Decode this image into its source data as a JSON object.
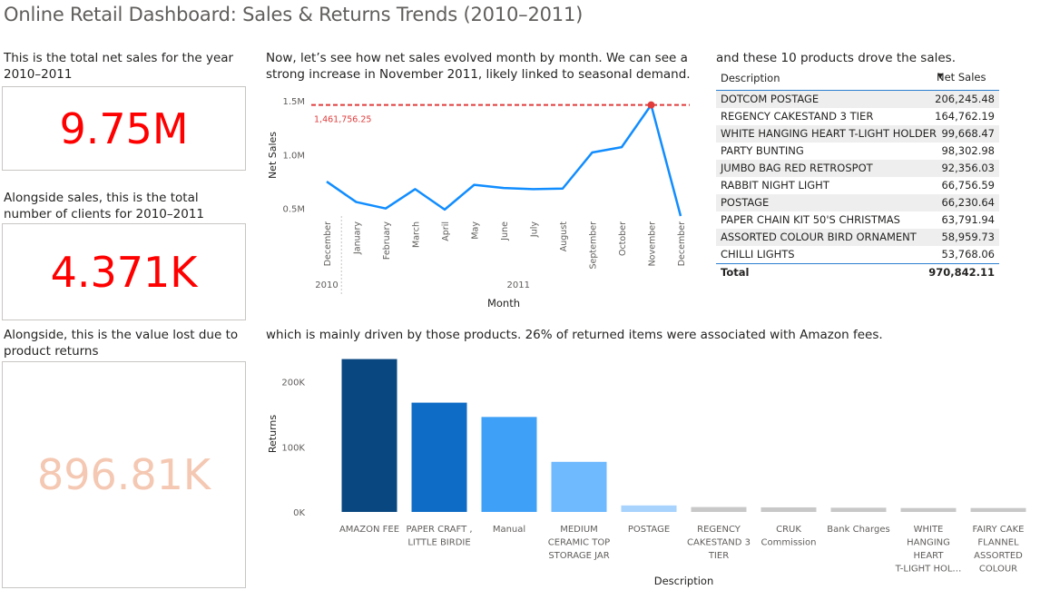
{
  "title": "Online Retail Dashboard: Sales & Returns Trends (2010–2011)",
  "kpis": {
    "sales": {
      "caption": "This is the total net sales for the year 2010–2011",
      "value": "9.75M",
      "color": "#ff0000"
    },
    "clients": {
      "caption": "Alongside sales, this is the total number of clients for 2010–2011",
      "value": "4.371K",
      "color": "#ff0000"
    },
    "returns": {
      "caption": "Alongside, this is the value lost due to product returns",
      "value": "896.81K",
      "color": "#f4c8b2"
    }
  },
  "line_caption": "Now, let’s see how net sales evolved month by month. We can see a strong increase in November 2011, likely linked to seasonal demand.",
  "table_caption": "and these 10 products drove the sales.",
  "bar_caption": "which is mainly driven by those products. 26% of returned items were associated with Amazon fees.",
  "table": {
    "headers": [
      "Description",
      "Net Sales"
    ],
    "sort_icon": "sort-descending-icon",
    "rows": [
      [
        "DOTCOM POSTAGE",
        "206,245.48"
      ],
      [
        "REGENCY CAKESTAND 3 TIER",
        "164,762.19"
      ],
      [
        "WHITE HANGING HEART T-LIGHT HOLDER",
        "99,668.47"
      ],
      [
        "PARTY BUNTING",
        "98,302.98"
      ],
      [
        "JUMBO BAG RED RETROSPOT",
        "92,356.03"
      ],
      [
        "RABBIT NIGHT LIGHT",
        "66,756.59"
      ],
      [
        "POSTAGE",
        "66,230.64"
      ],
      [
        "PAPER CHAIN KIT 50'S CHRISTMAS",
        "63,791.94"
      ],
      [
        "ASSORTED COLOUR BIRD ORNAMENT",
        "58,959.73"
      ],
      [
        "CHILLI LIGHTS",
        "53,768.06"
      ]
    ],
    "total_label": "Total",
    "total_value": "970,842.11"
  },
  "chart_data": [
    {
      "type": "line",
      "title": "",
      "xlabel": "Month",
      "ylabel": "Net Sales",
      "categories": [
        "December",
        "January",
        "February",
        "March",
        "April",
        "May",
        "June",
        "July",
        "August",
        "September",
        "October",
        "November",
        "December"
      ],
      "year_groups": [
        {
          "label": "2010",
          "count": 1
        },
        {
          "label": "2011",
          "count": 12
        }
      ],
      "values": [
        750000,
        560000,
        500000,
        680000,
        490000,
        720000,
        690000,
        680000,
        685000,
        1020000,
        1070000,
        1461756.25,
        430000
      ],
      "yticks": [
        500000,
        1000000,
        1500000
      ],
      "ytick_labels": [
        "0.5M",
        "1.0M",
        "1.5M"
      ],
      "ylim": [
        430000,
        1560000
      ],
      "max_line": {
        "value": 1461756.25,
        "label": "1,461,756.25",
        "color": "#e03c3c"
      },
      "line_color": "#118dff"
    },
    {
      "type": "bar",
      "title": "",
      "xlabel": "Description",
      "ylabel": "Returns",
      "categories": [
        "AMAZON FEE",
        "PAPER CRAFT , LITTLE BIRDIE",
        "Manual",
        "MEDIUM CERAMIC TOP STORAGE JAR",
        "POSTAGE",
        "REGENCY CAKESTAND 3 TIER",
        "CRUK Commission",
        "Bank Charges",
        "WHITE HANGING HEART T-LIGHT HOL…",
        "FAIRY CAKE FLANNEL ASSORTED COLOUR"
      ],
      "category_lines": [
        [
          "AMAZON FEE"
        ],
        [
          "PAPER CRAFT ,",
          "LITTLE BIRDIE"
        ],
        [
          "Manual"
        ],
        [
          "MEDIUM",
          "CERAMIC TOP",
          "STORAGE JAR"
        ],
        [
          "POSTAGE"
        ],
        [
          "REGENCY",
          "CAKESTAND 3",
          "TIER"
        ],
        [
          "CRUK",
          "Commission"
        ],
        [
          "Bank Charges"
        ],
        [
          "WHITE",
          "HANGING",
          "HEART",
          "T-LIGHT HOL…"
        ],
        [
          "FAIRY CAKE",
          "FLANNEL",
          "ASSORTED",
          "COLOUR"
        ]
      ],
      "values": [
        235000,
        168000,
        146000,
        77000,
        10000,
        7500,
        7000,
        6500,
        6000,
        6000
      ],
      "colors": [
        "#094780",
        "#0f6cc6",
        "#3fa0f7",
        "#6fb9ff",
        "#a7d3fd",
        "#c8c8c8",
        "#c8c8c8",
        "#c8c8c8",
        "#c8c8c8",
        "#c8c8c8"
      ],
      "yticks": [
        0,
        100000,
        200000
      ],
      "ytick_labels": [
        "0K",
        "100K",
        "200K"
      ],
      "ylim": [
        0,
        240000
      ]
    }
  ]
}
